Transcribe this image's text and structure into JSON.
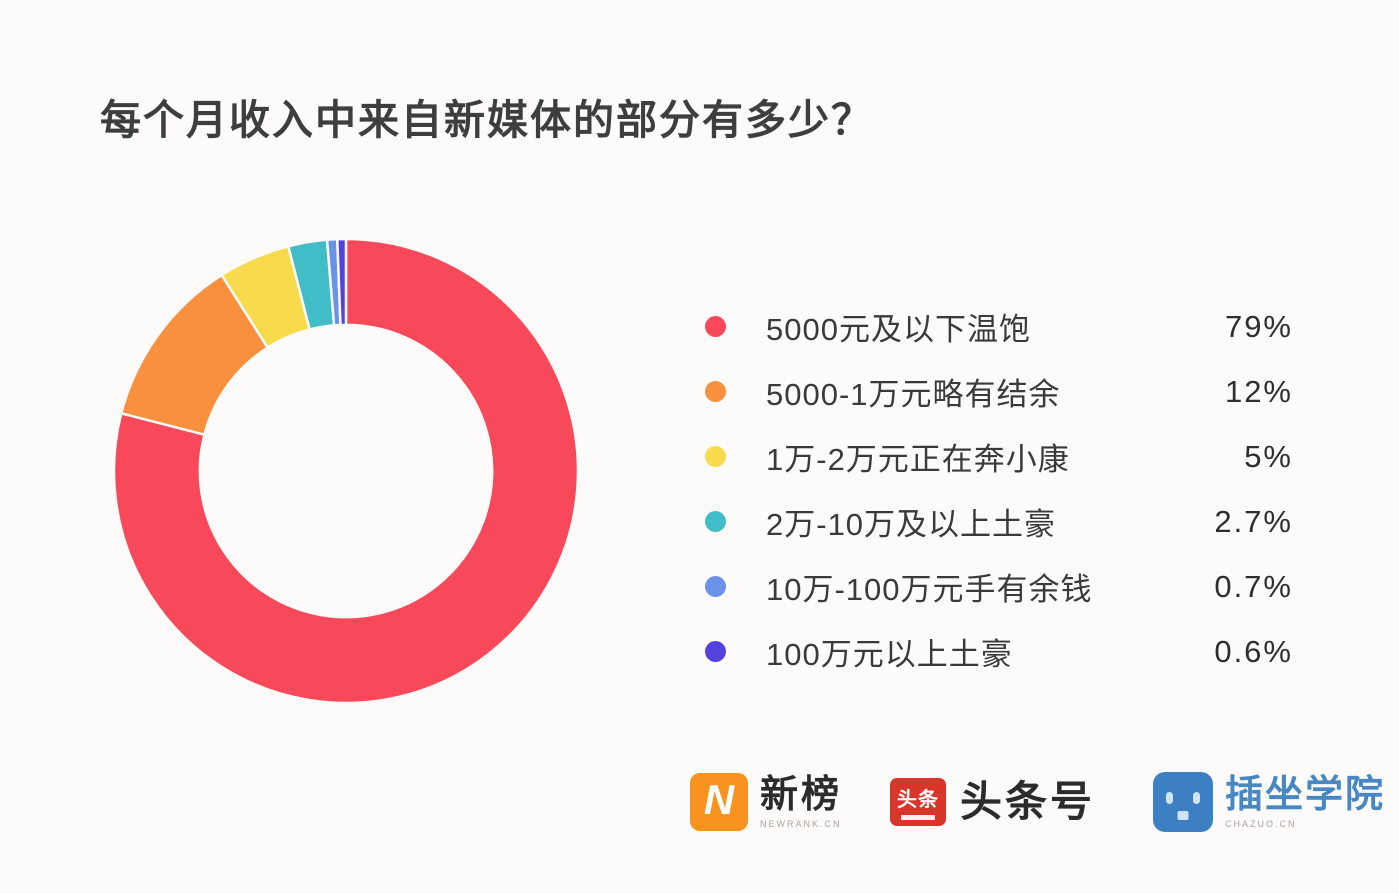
{
  "page": {
    "background": "#FCFBF9"
  },
  "title": "每个月收入中来自新媒体的部分有多少？",
  "chart_data": {
    "type": "pie",
    "subtype": "donut",
    "title": "每个月收入中来自新媒体的部分有多少？",
    "start_angle_deg": 0,
    "direction": "clockwise",
    "inner_radius_ratio": 0.63,
    "legend_position": "right",
    "slices": [
      {
        "label": "5000元及以下温饱",
        "value": 79,
        "display": "79%",
        "color": "#F8495B"
      },
      {
        "label": "5000-1万元略有结余",
        "value": 12,
        "display": "12%",
        "color": "#F9903E"
      },
      {
        "label": "1万-2万元正在奔小康",
        "value": 5,
        "display": "5%",
        "color": "#F8DB4D"
      },
      {
        "label": "2万-10万及以上土豪",
        "value": 2.7,
        "display": "2.7%",
        "color": "#41BDC8"
      },
      {
        "label": "10万-100万元手有余钱",
        "value": 0.7,
        "display": "0.7%",
        "color": "#6A92E8"
      },
      {
        "label": "100万元以上土豪",
        "value": 0.6,
        "display": "0.6%",
        "color": "#5442DF"
      }
    ]
  },
  "footer": {
    "logos": {
      "newrank": {
        "icon_glyph": "N",
        "icon_color": "#F7931E",
        "name": "新榜",
        "subtitle": "NEWRANK.CN"
      },
      "toutiao": {
        "icon_chars": "头条",
        "icon_color": "#D8352B",
        "name": "头条号"
      },
      "chazuo": {
        "icon_color": "#3C80C3",
        "name": "插坐学院",
        "name_color": "#4787C2",
        "subtitle": "CHAZUO.CN"
      }
    }
  }
}
